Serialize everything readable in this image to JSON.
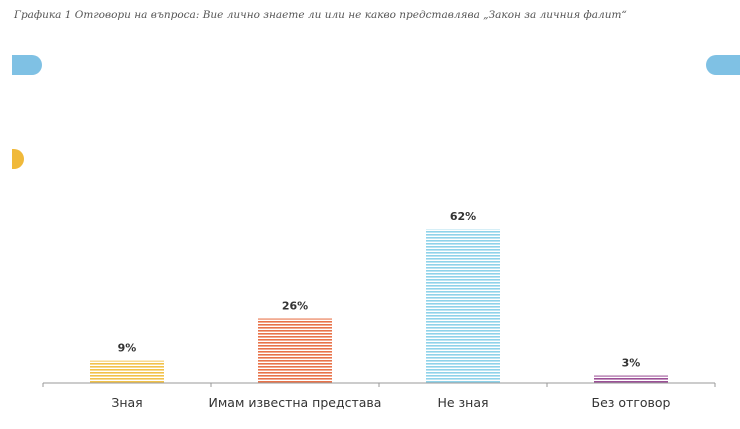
{
  "caption": "Графика 1 Отговори на въпроса: Вие лично знаете ли или не какво представлява „Закон за личния фалит“",
  "chart_data": {
    "type": "bar",
    "categories": [
      "Зная",
      "Имам известна представа",
      "Не зная",
      "Без отговор"
    ],
    "values": [
      9,
      26,
      62,
      3
    ],
    "value_labels": [
      "9%",
      "26%",
      "62%",
      "3%"
    ],
    "colors": [
      "#f2c24a",
      "#e8734a",
      "#8fd3ea",
      "#9b4f96"
    ],
    "ylim": [
      0,
      100
    ],
    "grid": false,
    "bar_style": "horizontal-stripes"
  },
  "decorations": {
    "accent_blue": "#7fc1e4",
    "accent_yellow": "#f0b93a"
  }
}
